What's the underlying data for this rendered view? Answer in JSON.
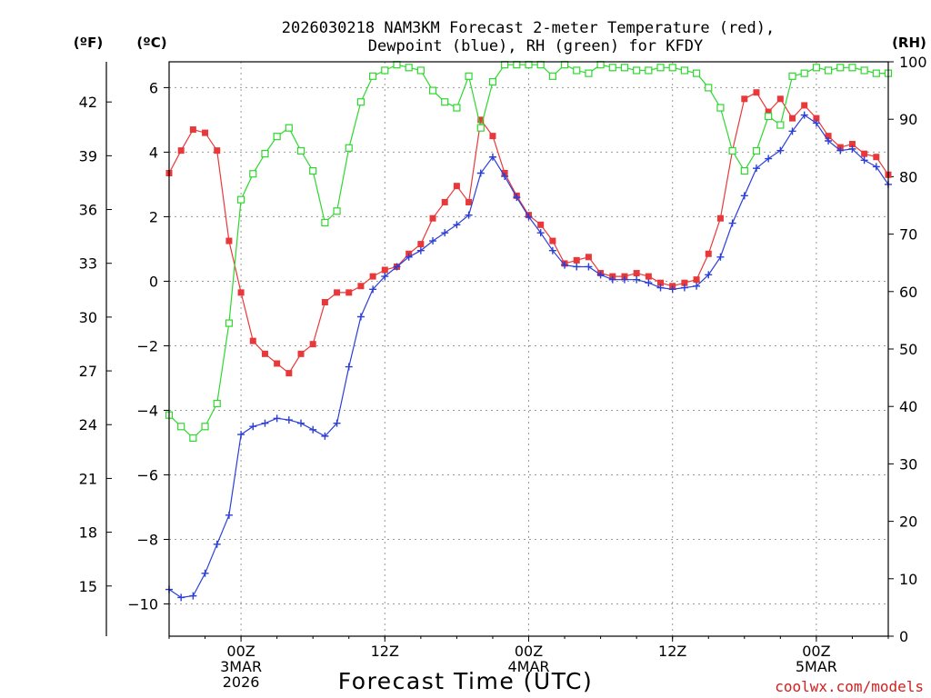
{
  "chart_data": {
    "type": "line",
    "title_line1": "2026030218 NAM3KM Forecast 2-meter Temperature (red),",
    "title_line2": "Dewpoint (blue), RH (green) for KFDY",
    "xlabel": "Forecast Time (UTC)",
    "unit_labels": {
      "fahrenheit": "(ºF)",
      "celsius": "(ºC)",
      "rh": "(RH)"
    },
    "credit": "coolwx.com/models",
    "x_range_hours": [
      -6,
      54
    ],
    "celsius_range": [
      -11,
      6.8
    ],
    "rh_range": [
      0,
      100
    ],
    "celsius_ticks": [
      -10,
      -8,
      -6,
      -4,
      -2,
      0,
      2,
      4,
      6
    ],
    "celsius_tick_labels": [
      "−10",
      "−8",
      "−6",
      "−4",
      "−2",
      "0",
      "2",
      "4",
      "6"
    ],
    "fahrenheit_ticks": [
      15,
      18,
      21,
      24,
      27,
      30,
      33,
      36,
      39,
      42
    ],
    "fahrenheit_tick_labels": [
      "15",
      "18",
      "21",
      "24",
      "27",
      "30",
      "33",
      "36",
      "39",
      "42"
    ],
    "rh_ticks": [
      0,
      10,
      20,
      30,
      40,
      50,
      60,
      70,
      80,
      90,
      100
    ],
    "rh_tick_labels": [
      "0",
      "10",
      "20",
      "30",
      "40",
      "50",
      "60",
      "70",
      "80",
      "90",
      "100"
    ],
    "x_ticks": [
      {
        "hour": 0,
        "lines": [
          "00Z",
          "3MAR",
          "2026"
        ]
      },
      {
        "hour": 12,
        "lines": [
          "12Z"
        ]
      },
      {
        "hour": 24,
        "lines": [
          "00Z",
          "4MAR"
        ]
      },
      {
        "hour": 36,
        "lines": [
          "12Z"
        ]
      },
      {
        "hour": 48,
        "lines": [
          "00Z",
          "5MAR"
        ]
      }
    ],
    "series": [
      {
        "name": "Temperature",
        "unit": "°C",
        "axis": "celsius",
        "color": "#e8383a",
        "marker": "filled-square",
        "x": [
          -6,
          -5,
          -4,
          -3,
          -2,
          -1,
          0,
          1,
          2,
          3,
          4,
          5,
          6,
          7,
          8,
          9,
          10,
          11,
          12,
          13,
          14,
          15,
          16,
          17,
          18,
          19,
          20,
          21,
          22,
          23,
          24,
          25,
          26,
          27,
          28,
          29,
          30,
          31,
          32,
          33,
          34,
          35,
          36,
          37,
          38,
          39,
          40,
          41,
          42,
          43,
          44,
          45,
          46,
          47,
          48,
          49,
          50,
          51,
          52,
          53,
          54
        ],
        "values": [
          3.35,
          4.05,
          4.7,
          4.6,
          4.05,
          1.25,
          -0.35,
          -1.85,
          -2.25,
          -2.55,
          -2.85,
          -2.25,
          -1.95,
          -0.65,
          -0.35,
          -0.35,
          -0.15,
          0.15,
          0.35,
          0.45,
          0.85,
          1.15,
          1.95,
          2.45,
          2.95,
          2.45,
          5.0,
          4.5,
          3.35,
          2.65,
          2.05,
          1.75,
          1.25,
          0.55,
          0.65,
          0.75,
          0.25,
          0.15,
          0.15,
          0.25,
          0.15,
          -0.05,
          -0.15,
          -0.05,
          0.05,
          0.85,
          1.95,
          4.05,
          5.65,
          5.85,
          5.25,
          5.65,
          5.05,
          5.45,
          5.05,
          4.5,
          4.15,
          4.25,
          3.95,
          3.85,
          3.3
        ]
      },
      {
        "name": "Dewpoint",
        "unit": "°C",
        "axis": "celsius",
        "color": "#2b3ed8",
        "marker": "plus",
        "x": [
          -6,
          -5,
          -4,
          -3,
          -2,
          -1,
          0,
          1,
          2,
          3,
          4,
          5,
          6,
          7,
          8,
          9,
          10,
          11,
          12,
          13,
          14,
          15,
          16,
          17,
          18,
          19,
          20,
          21,
          22,
          23,
          24,
          25,
          26,
          27,
          28,
          29,
          30,
          31,
          32,
          33,
          34,
          35,
          36,
          37,
          38,
          39,
          40,
          41,
          42,
          43,
          44,
          45,
          46,
          47,
          48,
          49,
          50,
          51,
          52,
          53,
          54
        ],
        "values": [
          -9.55,
          -9.8,
          -9.75,
          -9.05,
          -8.15,
          -7.25,
          -4.75,
          -4.5,
          -4.4,
          -4.25,
          -4.3,
          -4.4,
          -4.6,
          -4.8,
          -4.4,
          -2.65,
          -1.1,
          -0.25,
          0.15,
          0.45,
          0.75,
          0.95,
          1.25,
          1.5,
          1.75,
          2.05,
          3.35,
          3.85,
          3.25,
          2.6,
          2.0,
          1.5,
          0.95,
          0.5,
          0.45,
          0.45,
          0.2,
          0.05,
          0.05,
          0.05,
          -0.05,
          -0.2,
          -0.25,
          -0.2,
          -0.15,
          0.2,
          0.75,
          1.8,
          2.65,
          3.5,
          3.8,
          4.05,
          4.65,
          5.15,
          4.9,
          4.35,
          4.05,
          4.1,
          3.75,
          3.55,
          3.0
        ]
      },
      {
        "name": "RH",
        "unit": "%",
        "axis": "rh",
        "color": "#2ed82e",
        "marker": "open-square",
        "x": [
          -6,
          -5,
          -4,
          -3,
          -2,
          -1,
          0,
          1,
          2,
          3,
          4,
          5,
          6,
          7,
          8,
          9,
          10,
          11,
          12,
          13,
          14,
          15,
          16,
          17,
          18,
          19,
          20,
          21,
          22,
          23,
          24,
          25,
          26,
          27,
          28,
          29,
          30,
          31,
          32,
          33,
          34,
          35,
          36,
          37,
          38,
          39,
          40,
          41,
          42,
          43,
          44,
          45,
          46,
          47,
          48,
          49,
          50,
          51,
          52,
          53,
          54
        ],
        "values": [
          38.5,
          36.5,
          34.5,
          36.5,
          40.5,
          54.5,
          76.0,
          80.5,
          84.0,
          87.0,
          88.5,
          84.5,
          81.0,
          72.0,
          74.0,
          85.0,
          93.0,
          97.5,
          98.5,
          99.5,
          99.0,
          98.5,
          95.0,
          93.0,
          92.0,
          97.5,
          88.5,
          96.5,
          99.5,
          99.5,
          99.5,
          99.5,
          97.5,
          99.5,
          98.5,
          98.0,
          99.5,
          99.0,
          99.0,
          98.5,
          98.5,
          99.0,
          99.0,
          98.5,
          98.0,
          95.5,
          92.0,
          84.5,
          81.0,
          84.5,
          90.5,
          89.0,
          97.5,
          98.0,
          99.0,
          98.5,
          99.0,
          99.0,
          98.5,
          98.0,
          98.0
        ]
      }
    ]
  }
}
